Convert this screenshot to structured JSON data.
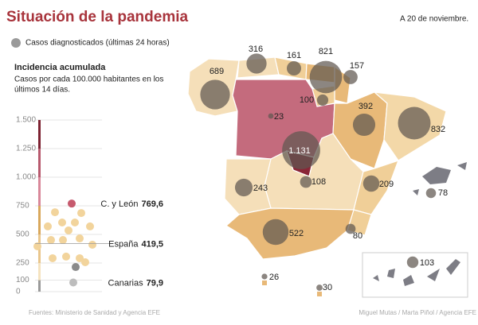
{
  "title": "Situación de la pandemia",
  "date": "A 20 de noviembre.",
  "legend": "Casos diagnosticados (últimas 24 horas)",
  "incidence": {
    "title": "Incidencia acumulada",
    "subtitle_lines": [
      "Casos por cada 100.000 habitantes en los",
      "últimos 14 días."
    ],
    "ylim": [
      0,
      1500
    ],
    "yticks": [
      0,
      100,
      250,
      500,
      750,
      {
        "value": 1000,
        "label": "1.000"
      },
      {
        "value": 1250,
        "label": "1.250"
      },
      {
        "value": 1500,
        "label": "1.500"
      }
    ],
    "band_colors": [
      "#9a9a9a",
      "#f5e3c0",
      "#e9c68c",
      "#d9a85c",
      "#d9889a",
      "#b85a6e",
      "#7d2232"
    ],
    "point_color": "#f2d49c",
    "points": [
      694,
      687,
      604,
      604,
      570,
      570,
      535,
      465,
      451,
      451,
      410,
      396,
      306,
      292,
      292,
      257
    ],
    "highlights": [
      {
        "name": "C. y León",
        "value": 769.6,
        "value_label": "769,6",
        "color": "#c65a6e"
      },
      {
        "name": "España",
        "value": 419.5,
        "value_label": "419,5"
      },
      {
        "name": "Canarias",
        "value": 79.9,
        "value_label": "79,9",
        "color": "#bdbdbd"
      }
    ],
    "other_points": [
      {
        "value": 215,
        "color": "#8a8a8a"
      }
    ]
  },
  "map": {
    "bubble_color": "#5f5750",
    "cases": [
      316,
      161,
      821,
      157,
      689,
      100,
      392,
      23,
      {
        "value": 1131,
        "label": "1.131"
      },
      832,
      243,
      108,
      209,
      78,
      522,
      80,
      103,
      26,
      30
    ]
  },
  "sources": "Fuentes: Ministerio de Sanidad y Agencia EFE",
  "credits": "Miguel Mutas / Marta Piñol / Agencia EFE"
}
